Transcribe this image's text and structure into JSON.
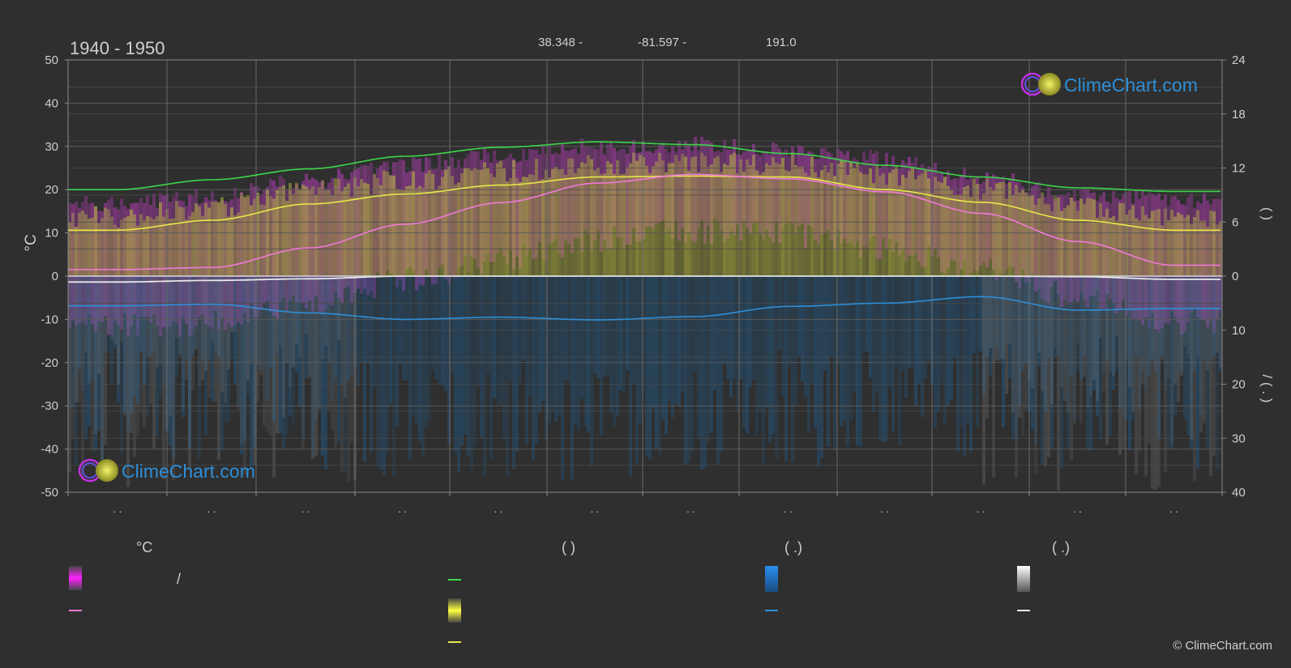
{
  "header": {
    "period": "1940 - 1950",
    "lat_text": "38.348 -",
    "lon_text": "-81.597 -",
    "elev_text": "191.0"
  },
  "axes": {
    "left_unit": "°C",
    "left_ticks": [
      "50",
      "40",
      "30",
      "20",
      "10",
      "0",
      "-10",
      "-20",
      "-30",
      "-40",
      "-50"
    ],
    "right_ticks_top": [
      "24",
      "18",
      "12",
      "6",
      "0"
    ],
    "right_ticks_bottom": [
      "10",
      "20",
      "30",
      "40"
    ],
    "right_label_top": "(   )",
    "right_label_bottom": "/  (   .   )",
    "month_labels": [
      ". .",
      ". .",
      ". .",
      ". .",
      ". .",
      ". .",
      ". .",
      ". .",
      ". .",
      ". .",
      ". .",
      ". ."
    ]
  },
  "watermark": {
    "text": "ClimeChart.com",
    "copyright": "© ClimeChart.com"
  },
  "legend": {
    "col1_header": "°C",
    "col2_header": "(          )",
    "col3_header": "(   .)",
    "col4_header": "(   .)",
    "slash": "/"
  },
  "colors": {
    "background": "#2f2f2f",
    "daylight": "#3cd64a",
    "sunshine": "#e8e84a",
    "mean_temp": "#f07ad8",
    "precipitation": "#2e8fd8",
    "snow": "#e8e8e8",
    "temp_band": "#d040d0",
    "sun_band": "#b8b840",
    "rain_band": "#1f5f92",
    "logo_blue": "#2e8fd8"
  },
  "chart_data": {
    "type": "line",
    "x": [
      "Jan",
      "Feb",
      "Mar",
      "Apr",
      "May",
      "Jun",
      "Jul",
      "Aug",
      "Sep",
      "Oct",
      "Nov",
      "Dec"
    ],
    "left_axis": {
      "unit": "°C",
      "ylim": [
        -50,
        50
      ]
    },
    "right_axis_top": {
      "ylim": [
        0,
        24
      ]
    },
    "right_axis_bottom": {
      "ylim": [
        0,
        40
      ]
    },
    "grid": true,
    "series": [
      {
        "key": "daylight",
        "axis": "right_top",
        "values": [
          9.6,
          10.7,
          11.9,
          13.3,
          14.3,
          14.9,
          14.6,
          13.6,
          12.3,
          11.0,
          9.8,
          9.4
        ]
      },
      {
        "key": "sunshine",
        "axis": "right_top",
        "values": [
          5.1,
          6.2,
          8.0,
          9.1,
          10.1,
          11.0,
          11.1,
          11.0,
          9.6,
          8.2,
          6.2,
          5.1
        ]
      },
      {
        "key": "temp_max_band",
        "axis": "left",
        "values": [
          17.0,
          18.5,
          22.0,
          25.5,
          28.0,
          30.0,
          30.5,
          29.5,
          27.0,
          23.0,
          19.0,
          17.5
        ]
      },
      {
        "key": "mean_temp",
        "axis": "left",
        "values": [
          1.5,
          2.0,
          6.5,
          12.0,
          17.0,
          21.5,
          23.5,
          22.5,
          19.5,
          14.5,
          8.0,
          2.5
        ]
      },
      {
        "key": "precipitation",
        "axis": "right_bottom",
        "values": [
          5.5,
          5.2,
          6.8,
          8.0,
          7.6,
          8.1,
          7.5,
          5.6,
          5.0,
          3.8,
          6.3,
          6.0
        ]
      },
      {
        "key": "snow",
        "axis": "right_bottom",
        "values": [
          1.1,
          0.8,
          0.5,
          0.0,
          0.0,
          0.0,
          0.0,
          0.0,
          0.0,
          0.0,
          0.1,
          0.6
        ]
      }
    ]
  }
}
